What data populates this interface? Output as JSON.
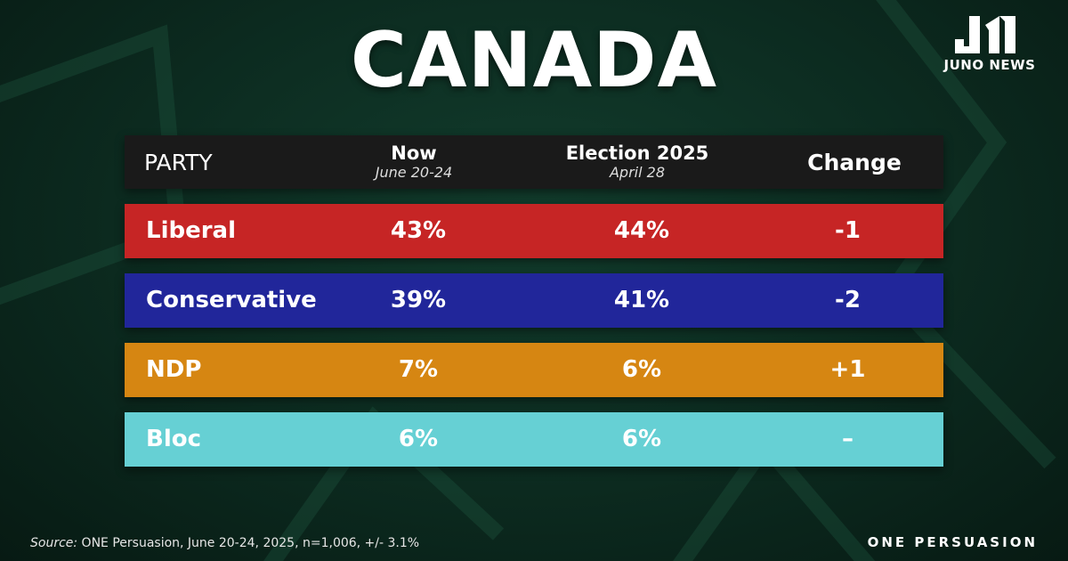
{
  "title": "CANADA",
  "logo": {
    "text": "JUNO NEWS"
  },
  "table": {
    "headers": {
      "party": "PARTY",
      "now": "Now",
      "now_date": "June 20-24",
      "election": "Election 2025",
      "election_date": "April 28",
      "change": "Change"
    },
    "rows": [
      {
        "party": "Liberal",
        "now": "43%",
        "election": "44%",
        "change": "-1",
        "color": "#c62525"
      },
      {
        "party": "Conservative",
        "now": "39%",
        "election": "41%",
        "change": "-2",
        "color": "#21269a"
      },
      {
        "party": "NDP",
        "now": "7%",
        "election": "6%",
        "change": "+1",
        "color": "#d68612"
      },
      {
        "party": "Bloc",
        "now": "6%",
        "election": "6%",
        "change": "–",
        "color": "#66d0d4"
      }
    ]
  },
  "chart_data": {
    "type": "table",
    "title": "CANADA",
    "columns": [
      "PARTY",
      "Now June 20-24",
      "Election 2025 April 28",
      "Change"
    ],
    "categories": [
      "Liberal",
      "Conservative",
      "NDP",
      "Bloc"
    ],
    "series": [
      {
        "name": "Now",
        "values": [
          43,
          39,
          7,
          6
        ]
      },
      {
        "name": "Election 2025",
        "values": [
          44,
          41,
          6,
          6
        ]
      },
      {
        "name": "Change",
        "values": [
          -1,
          -2,
          1,
          0
        ]
      }
    ]
  },
  "footer": {
    "source_label": "Source:",
    "source_text": " ONE Persuasion, June 20-24, 2025, n=1,006, +/- 3.1%",
    "brand": "ONE PERSUASION"
  }
}
